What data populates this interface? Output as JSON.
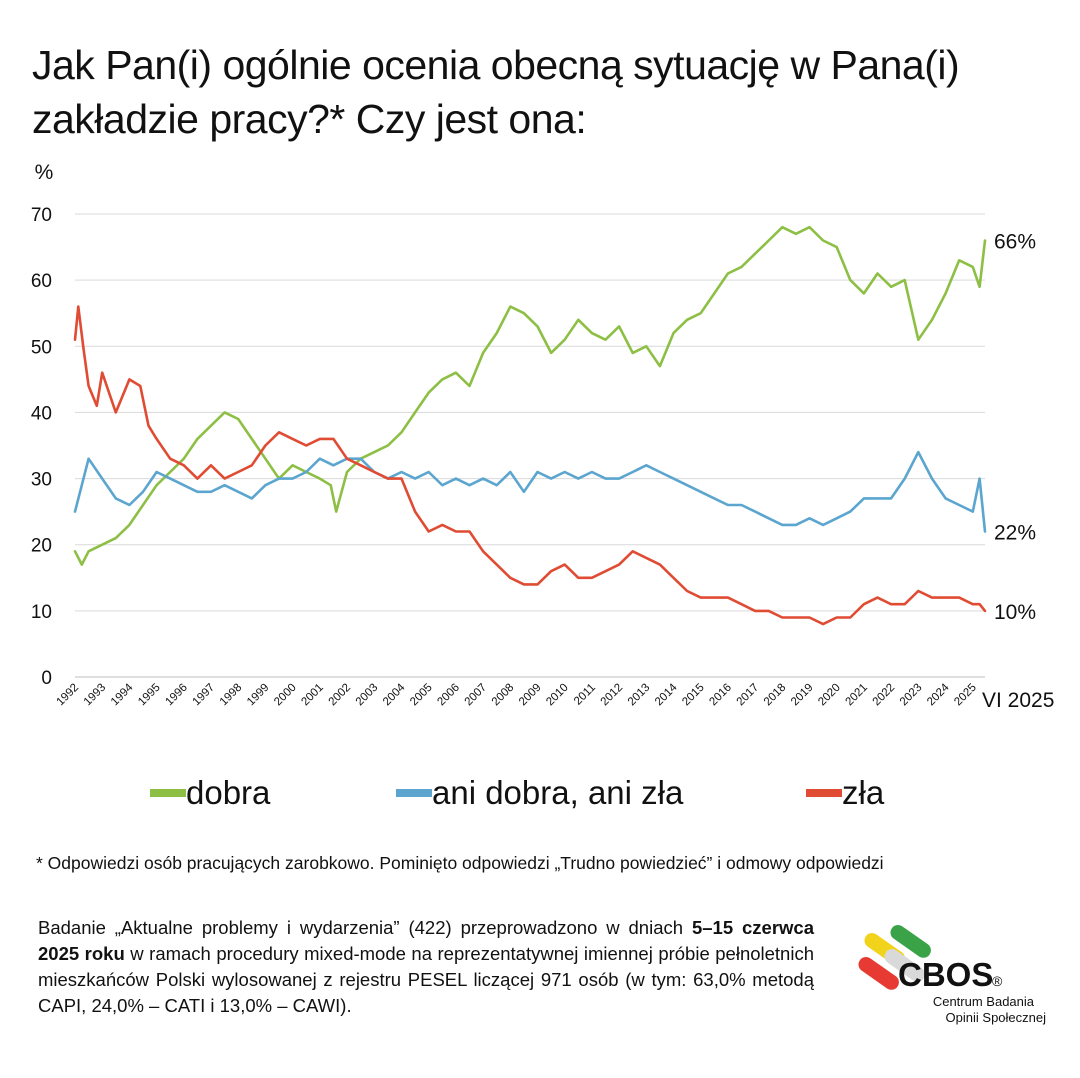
{
  "title": {
    "line1": "Jak Pan(i) ogólnie ocenia obecną sytuację w Pana(i)",
    "line2": "zakładzie pracy?* Czy jest ona:"
  },
  "chart_data": {
    "type": "line",
    "ylabel": "%",
    "ylim": [
      0,
      70
    ],
    "yticks": [
      0,
      10,
      20,
      30,
      40,
      50,
      60,
      70
    ],
    "xlim": [
      1992,
      2025.45
    ],
    "xtick_labels": [
      "1992",
      "1993",
      "1994",
      "1995",
      "1996",
      "1997",
      "1998",
      "1999",
      "2000",
      "2001",
      "2002",
      "2003",
      "2004",
      "2005",
      "2006",
      "2007",
      "2008",
      "2009",
      "2010",
      "2011",
      "2012",
      "2013",
      "2014",
      "2015",
      "2016",
      "2017",
      "2018",
      "2019",
      "2020",
      "2021",
      "2022",
      "2023",
      "2024",
      "2025"
    ],
    "last_period_label": "VI 2025",
    "grid": true,
    "series": [
      {
        "name": "dobra",
        "color": "#8dbf45",
        "end_label": "66%",
        "points": [
          [
            1992.0,
            19
          ],
          [
            1992.25,
            17
          ],
          [
            1992.5,
            19
          ],
          [
            1993.0,
            20
          ],
          [
            1993.5,
            21
          ],
          [
            1994.0,
            23
          ],
          [
            1994.5,
            26
          ],
          [
            1995.0,
            29
          ],
          [
            1995.5,
            31
          ],
          [
            1996.0,
            33
          ],
          [
            1996.5,
            36
          ],
          [
            1997.0,
            38
          ],
          [
            1997.5,
            40
          ],
          [
            1998.0,
            39
          ],
          [
            1998.5,
            36
          ],
          [
            1999.0,
            33
          ],
          [
            1999.5,
            30
          ],
          [
            2000.0,
            32
          ],
          [
            2000.5,
            31
          ],
          [
            2001.0,
            30
          ],
          [
            2001.4,
            29
          ],
          [
            2001.6,
            25
          ],
          [
            2002.0,
            31
          ],
          [
            2002.5,
            33
          ],
          [
            2003.0,
            34
          ],
          [
            2003.5,
            35
          ],
          [
            2004.0,
            37
          ],
          [
            2004.5,
            40
          ],
          [
            2005.0,
            43
          ],
          [
            2005.5,
            45
          ],
          [
            2006.0,
            46
          ],
          [
            2006.5,
            44
          ],
          [
            2007.0,
            49
          ],
          [
            2007.5,
            52
          ],
          [
            2008.0,
            56
          ],
          [
            2008.5,
            55
          ],
          [
            2009.0,
            53
          ],
          [
            2009.5,
            49
          ],
          [
            2010.0,
            51
          ],
          [
            2010.5,
            54
          ],
          [
            2011.0,
            52
          ],
          [
            2011.5,
            51
          ],
          [
            2012.0,
            53
          ],
          [
            2012.5,
            49
          ],
          [
            2013.0,
            50
          ],
          [
            2013.5,
            47
          ],
          [
            2014.0,
            52
          ],
          [
            2014.5,
            54
          ],
          [
            2015.0,
            55
          ],
          [
            2015.5,
            58
          ],
          [
            2016.0,
            61
          ],
          [
            2016.5,
            62
          ],
          [
            2017.0,
            64
          ],
          [
            2017.5,
            66
          ],
          [
            2018.0,
            68
          ],
          [
            2018.5,
            67
          ],
          [
            2019.0,
            68
          ],
          [
            2019.5,
            66
          ],
          [
            2020.0,
            65
          ],
          [
            2020.5,
            60
          ],
          [
            2021.0,
            58
          ],
          [
            2021.5,
            61
          ],
          [
            2022.0,
            59
          ],
          [
            2022.5,
            60
          ],
          [
            2023.0,
            51
          ],
          [
            2023.5,
            54
          ],
          [
            2024.0,
            58
          ],
          [
            2024.5,
            63
          ],
          [
            2025.0,
            62
          ],
          [
            2025.25,
            59
          ],
          [
            2025.45,
            66
          ]
        ]
      },
      {
        "name": "ani dobra, ani zła",
        "color": "#5ba5cf",
        "end_label": "22%",
        "points": [
          [
            1992.0,
            25
          ],
          [
            1992.25,
            29
          ],
          [
            1992.5,
            33
          ],
          [
            1993.0,
            30
          ],
          [
            1993.5,
            27
          ],
          [
            1994.0,
            26
          ],
          [
            1994.5,
            28
          ],
          [
            1995.0,
            31
          ],
          [
            1995.5,
            30
          ],
          [
            1996.0,
            29
          ],
          [
            1996.5,
            28
          ],
          [
            1997.0,
            28
          ],
          [
            1997.5,
            29
          ],
          [
            1998.0,
            28
          ],
          [
            1998.5,
            27
          ],
          [
            1999.0,
            29
          ],
          [
            1999.5,
            30
          ],
          [
            2000.0,
            30
          ],
          [
            2000.5,
            31
          ],
          [
            2001.0,
            33
          ],
          [
            2001.5,
            32
          ],
          [
            2002.0,
            33
          ],
          [
            2002.5,
            33
          ],
          [
            2003.0,
            31
          ],
          [
            2003.5,
            30
          ],
          [
            2004.0,
            31
          ],
          [
            2004.5,
            30
          ],
          [
            2005.0,
            31
          ],
          [
            2005.5,
            29
          ],
          [
            2006.0,
            30
          ],
          [
            2006.5,
            29
          ],
          [
            2007.0,
            30
          ],
          [
            2007.5,
            29
          ],
          [
            2008.0,
            31
          ],
          [
            2008.5,
            28
          ],
          [
            2009.0,
            31
          ],
          [
            2009.5,
            30
          ],
          [
            2010.0,
            31
          ],
          [
            2010.5,
            30
          ],
          [
            2011.0,
            31
          ],
          [
            2011.5,
            30
          ],
          [
            2012.0,
            30
          ],
          [
            2012.5,
            31
          ],
          [
            2013.0,
            32
          ],
          [
            2013.5,
            31
          ],
          [
            2014.0,
            30
          ],
          [
            2014.5,
            29
          ],
          [
            2015.0,
            28
          ],
          [
            2015.5,
            27
          ],
          [
            2016.0,
            26
          ],
          [
            2016.5,
            26
          ],
          [
            2017.0,
            25
          ],
          [
            2017.5,
            24
          ],
          [
            2018.0,
            23
          ],
          [
            2018.5,
            23
          ],
          [
            2019.0,
            24
          ],
          [
            2019.5,
            23
          ],
          [
            2020.0,
            24
          ],
          [
            2020.5,
            25
          ],
          [
            2021.0,
            27
          ],
          [
            2021.5,
            27
          ],
          [
            2022.0,
            27
          ],
          [
            2022.5,
            30
          ],
          [
            2023.0,
            34
          ],
          [
            2023.5,
            30
          ],
          [
            2024.0,
            27
          ],
          [
            2024.5,
            26
          ],
          [
            2025.0,
            25
          ],
          [
            2025.25,
            30
          ],
          [
            2025.45,
            22
          ]
        ]
      },
      {
        "name": "zła",
        "color": "#e04b33",
        "end_label": "10%",
        "points": [
          [
            1992.0,
            51
          ],
          [
            1992.12,
            56
          ],
          [
            1992.3,
            50
          ],
          [
            1992.5,
            44
          ],
          [
            1992.8,
            41
          ],
          [
            1993.0,
            46
          ],
          [
            1993.5,
            40
          ],
          [
            1994.0,
            45
          ],
          [
            1994.4,
            44
          ],
          [
            1994.7,
            38
          ],
          [
            1995.0,
            36
          ],
          [
            1995.5,
            33
          ],
          [
            1996.0,
            32
          ],
          [
            1996.5,
            30
          ],
          [
            1997.0,
            32
          ],
          [
            1997.5,
            30
          ],
          [
            1998.0,
            31
          ],
          [
            1998.5,
            32
          ],
          [
            1999.0,
            35
          ],
          [
            1999.5,
            37
          ],
          [
            2000.0,
            36
          ],
          [
            2000.5,
            35
          ],
          [
            2001.0,
            36
          ],
          [
            2001.5,
            36
          ],
          [
            2002.0,
            33
          ],
          [
            2002.5,
            32
          ],
          [
            2003.0,
            31
          ],
          [
            2003.5,
            30
          ],
          [
            2004.0,
            30
          ],
          [
            2004.5,
            25
          ],
          [
            2005.0,
            22
          ],
          [
            2005.5,
            23
          ],
          [
            2006.0,
            22
          ],
          [
            2006.5,
            22
          ],
          [
            2007.0,
            19
          ],
          [
            2007.5,
            17
          ],
          [
            2008.0,
            15
          ],
          [
            2008.5,
            14
          ],
          [
            2009.0,
            14
          ],
          [
            2009.5,
            16
          ],
          [
            2010.0,
            17
          ],
          [
            2010.5,
            15
          ],
          [
            2011.0,
            15
          ],
          [
            2011.5,
            16
          ],
          [
            2012.0,
            17
          ],
          [
            2012.5,
            19
          ],
          [
            2013.0,
            18
          ],
          [
            2013.5,
            17
          ],
          [
            2014.0,
            15
          ],
          [
            2014.5,
            13
          ],
          [
            2015.0,
            12
          ],
          [
            2015.5,
            12
          ],
          [
            2016.0,
            12
          ],
          [
            2016.5,
            11
          ],
          [
            2017.0,
            10
          ],
          [
            2017.5,
            10
          ],
          [
            2018.0,
            9
          ],
          [
            2018.5,
            9
          ],
          [
            2019.0,
            9
          ],
          [
            2019.5,
            8
          ],
          [
            2020.0,
            9
          ],
          [
            2020.5,
            9
          ],
          [
            2021.0,
            11
          ],
          [
            2021.5,
            12
          ],
          [
            2022.0,
            11
          ],
          [
            2022.5,
            11
          ],
          [
            2023.0,
            13
          ],
          [
            2023.5,
            12
          ],
          [
            2024.0,
            12
          ],
          [
            2024.5,
            12
          ],
          [
            2025.0,
            11
          ],
          [
            2025.25,
            11
          ],
          [
            2025.45,
            10
          ]
        ]
      }
    ]
  },
  "legend": [
    {
      "label": "dobra",
      "color": "#8dbf45"
    },
    {
      "label": "ani dobra, ani zła",
      "color": "#5ba5cf"
    },
    {
      "label": "zła",
      "color": "#e04b33"
    }
  ],
  "footnote": "* Odpowiedzi osób pracujących zarobkowo. Pominięto odpowiedzi „Trudno powiedzieć” i odmowy odpowiedzi",
  "methodology": {
    "part1": "Badanie „Aktualne problemy i wydarzenia” (422) przeprowadzono w dniach",
    "bold": "5–15 czerwca 2025 roku",
    "part2": "w ramach procedury mixed-mode na reprezentatywnej imiennej próbie pełnoletnich mieszkańców Polski wylosowanej z rejestru PESEL liczącej 971 osób (w tym: 63,0% metodą CAPI, 24,0% – CATI i 13,0% – CAWI)."
  },
  "logo": {
    "name": "CBOS",
    "registered": "®",
    "line1": "Centrum Badania",
    "line2": "Opinii Społecznej",
    "colors": [
      "#f2d31b",
      "#3aa348",
      "#e63a32",
      "#d9d9d9"
    ]
  }
}
